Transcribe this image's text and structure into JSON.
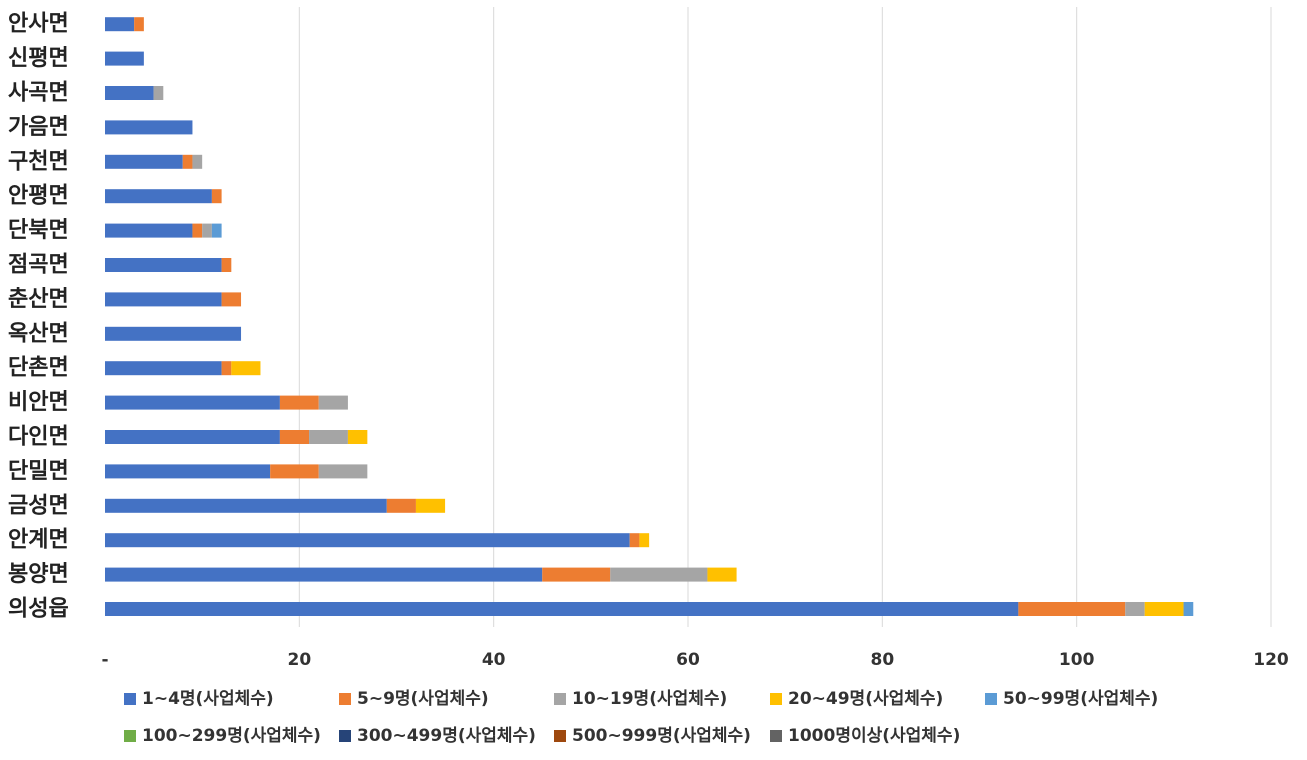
{
  "chart_data": {
    "type": "bar",
    "orientation": "horizontal",
    "stacked": true,
    "categories": [
      "안사면",
      "신평면",
      "사곡면",
      "가음면",
      "구천면",
      "안평면",
      "단북면",
      "점곡면",
      "춘산면",
      "옥산면",
      "단촌면",
      "비안면",
      "다인면",
      "단밀면",
      "금성면",
      "안계면",
      "봉양면",
      "의성읍"
    ],
    "series": [
      {
        "name": "1~4명(사업체수)",
        "color": "#4472C4",
        "values": [
          3,
          4,
          5,
          9,
          8,
          11,
          9,
          12,
          12,
          14,
          12,
          18,
          18,
          17,
          29,
          54,
          45,
          94
        ]
      },
      {
        "name": "5~9명(사업체수)",
        "color": "#ED7D31",
        "values": [
          1,
          0,
          0,
          0,
          1,
          1,
          1,
          1,
          2,
          0,
          1,
          4,
          3,
          5,
          3,
          1,
          7,
          11
        ]
      },
      {
        "name": "10~19명(사업체수)",
        "color": "#A5A5A5",
        "values": [
          0,
          0,
          1,
          0,
          1,
          0,
          1,
          0,
          0,
          0,
          0,
          3,
          4,
          5,
          0,
          0,
          10,
          2
        ]
      },
      {
        "name": "20~49명(사업체수)",
        "color": "#FFC000",
        "values": [
          0,
          0,
          0,
          0,
          0,
          0,
          0,
          0,
          0,
          0,
          3,
          0,
          2,
          0,
          3,
          1,
          3,
          4
        ]
      },
      {
        "name": "50~99명(사업체수)",
        "color": "#5B9BD5",
        "values": [
          0,
          0,
          0,
          0,
          0,
          0,
          1,
          0,
          0,
          0,
          0,
          0,
          0,
          0,
          0,
          0,
          0,
          1
        ]
      },
      {
        "name": "100~299명(사업체수)",
        "color": "#70AD47",
        "values": [
          0,
          0,
          0,
          0,
          0,
          0,
          0,
          0,
          0,
          0,
          0,
          0,
          0,
          0,
          0,
          0,
          0,
          0
        ]
      },
      {
        "name": "300~499명(사업체수)",
        "color": "#264478",
        "values": [
          0,
          0,
          0,
          0,
          0,
          0,
          0,
          0,
          0,
          0,
          0,
          0,
          0,
          0,
          0,
          0,
          0,
          0
        ]
      },
      {
        "name": "500~999명(사업체수)",
        "color": "#9E480E",
        "values": [
          0,
          0,
          0,
          0,
          0,
          0,
          0,
          0,
          0,
          0,
          0,
          0,
          0,
          0,
          0,
          0,
          0,
          0
        ]
      },
      {
        "name": "1000명이상(사업체수)",
        "color": "#636363",
        "values": [
          0,
          0,
          0,
          0,
          0,
          0,
          0,
          0,
          0,
          0,
          0,
          0,
          0,
          0,
          0,
          0,
          0,
          0
        ]
      }
    ],
    "xlim": [
      0,
      120
    ],
    "x_ticks": [
      0,
      20,
      40,
      60,
      80,
      100,
      120
    ],
    "x_tick_labels": [
      "-",
      "20",
      "40",
      "60",
      "80",
      "100",
      "120"
    ],
    "grid": "vertical",
    "legend_position": "bottom",
    "title": "",
    "xlabel": "",
    "ylabel": ""
  }
}
